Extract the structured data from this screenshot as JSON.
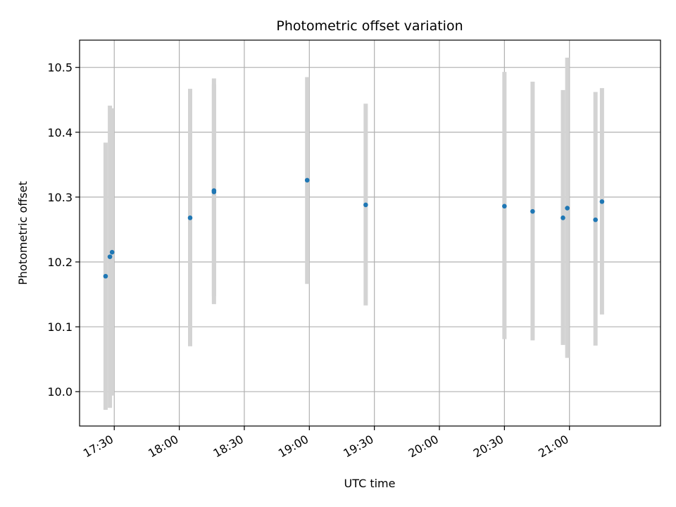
{
  "chart_data": {
    "type": "scatter",
    "title": "Photometric offset variation",
    "xlabel": "UTC time",
    "ylabel": "Photometric offset",
    "xlim": [
      "17:14",
      "21:42"
    ],
    "ylim": [
      9.947,
      10.542
    ],
    "x_ticks": [
      "17:30",
      "18:00",
      "18:30",
      "19:00",
      "19:30",
      "20:00",
      "20:30",
      "21:00"
    ],
    "y_ticks": [
      10.0,
      10.1,
      10.2,
      10.3,
      10.4,
      10.5
    ],
    "y_tick_labels": [
      "10.0",
      "10.1",
      "10.2",
      "10.3",
      "10.4",
      "10.5"
    ],
    "grid": true,
    "marker_color": "#1f77b4",
    "errorbar_color": "#d3d3d3",
    "points": [
      {
        "time": "17:26",
        "y": 10.178,
        "err_low": 9.972,
        "err_high": 10.384
      },
      {
        "time": "17:28",
        "y": 10.208,
        "err_low": 9.975,
        "err_high": 10.441
      },
      {
        "time": "17:29",
        "y": 10.215,
        "err_low": 9.994,
        "err_high": 10.437
      },
      {
        "time": "18:05",
        "y": 10.268,
        "err_low": 10.07,
        "err_high": 10.467
      },
      {
        "time": "18:16",
        "y": 10.31,
        "err_low": 10.147,
        "err_high": 10.474
      },
      {
        "time": "18:16",
        "y": 10.308,
        "err_low": 10.135,
        "err_high": 10.483
      },
      {
        "time": "18:59",
        "y": 10.326,
        "err_low": 10.166,
        "err_high": 10.485
      },
      {
        "time": "19:26",
        "y": 10.288,
        "err_low": 10.133,
        "err_high": 10.444
      },
      {
        "time": "20:30",
        "y": 10.286,
        "err_low": 10.081,
        "err_high": 10.493
      },
      {
        "time": "20:43",
        "y": 10.278,
        "err_low": 10.079,
        "err_high": 10.478
      },
      {
        "time": "20:57",
        "y": 10.268,
        "err_low": 10.072,
        "err_high": 10.465
      },
      {
        "time": "20:59",
        "y": 10.283,
        "err_low": 10.052,
        "err_high": 10.515
      },
      {
        "time": "21:12",
        "y": 10.265,
        "err_low": 10.071,
        "err_high": 10.462
      },
      {
        "time": "21:15",
        "y": 10.293,
        "err_low": 10.119,
        "err_high": 10.468
      }
    ]
  }
}
